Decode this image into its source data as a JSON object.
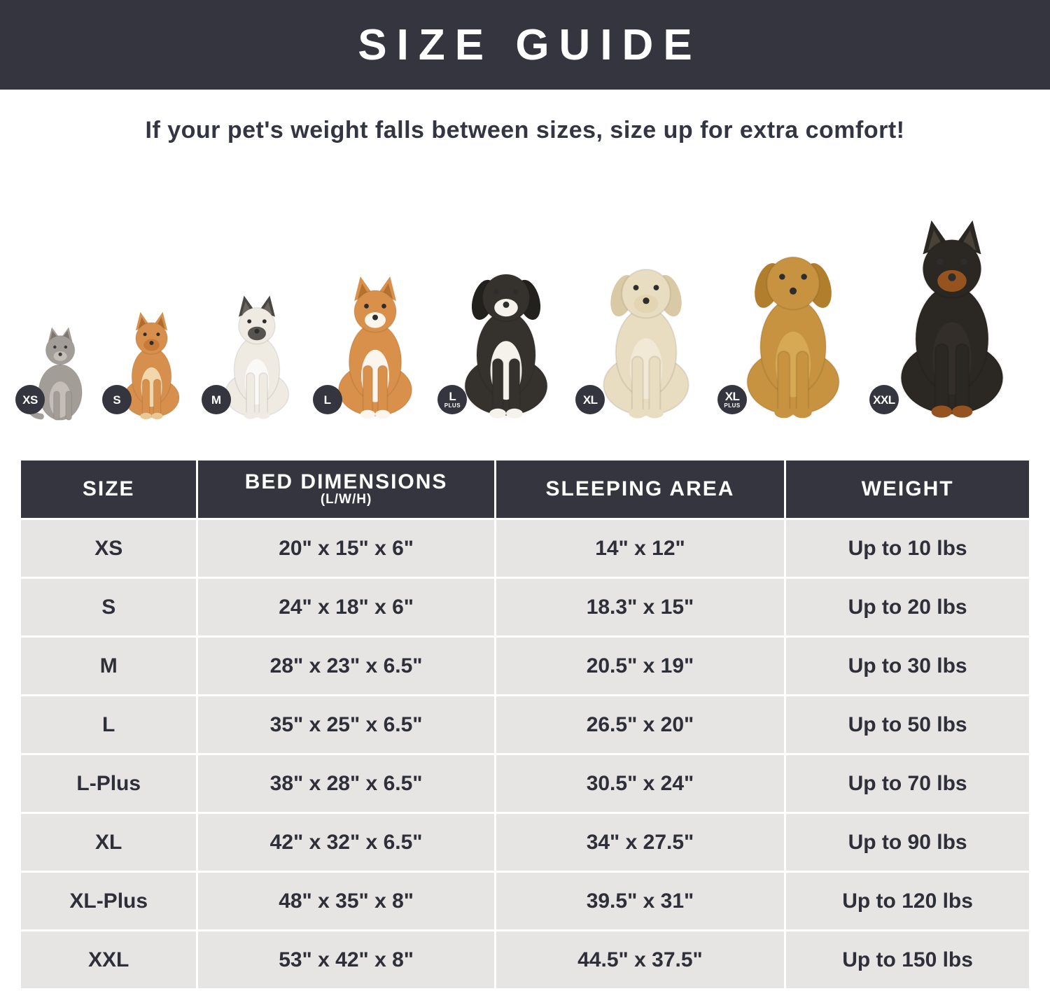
{
  "colors": {
    "navy": "#35353F",
    "row_bg": "#E6E5E3",
    "text_dark": "#2E2F38",
    "white": "#FFFFFF"
  },
  "header": {
    "title": "SIZE GUIDE"
  },
  "subtitle": "If your pet's weight falls between sizes, size up for extra comfort!",
  "pets": [
    {
      "badge": "XS",
      "badge_sub": "",
      "animal": "cat",
      "shape": "cat",
      "colors": {
        "primary": "#A39D97",
        "secondary": "#C4BEB6",
        "accent": "#7E776F",
        "ear": "#A39D97",
        "muzzle": "#C4BEB6",
        "paws": "#A39D97"
      }
    },
    {
      "badge": "S",
      "badge_sub": "",
      "animal": "pomeranian",
      "shape": "pointy",
      "colors": {
        "primary": "#D68F4C",
        "secondary": "#F2D7AC",
        "accent": "#B06C2E",
        "ear": "#D68F4C",
        "muzzle": "#C87A38",
        "paws": "#E8C894"
      }
    },
    {
      "badge": "M",
      "badge_sub": "",
      "animal": "french-bulldog",
      "shape": "pointy",
      "colors": {
        "primary": "#EFEBE3",
        "secondary": "#FBF9F5",
        "accent": "#6B6660",
        "ear": "#4A4743",
        "muzzle": "#57534E",
        "paws": "#EFEBE3"
      }
    },
    {
      "badge": "L",
      "badge_sub": "",
      "animal": "shiba-inu",
      "shape": "pointy",
      "colors": {
        "primary": "#D8904A",
        "secondary": "#FBF5EB",
        "accent": "#B5722F",
        "ear": "#D8904A",
        "muzzle": "#FBF5EB",
        "paws": "#FBF5EB"
      }
    },
    {
      "badge": "L",
      "badge_sub": "PLUS",
      "animal": "border-collie",
      "shape": "floppy",
      "colors": {
        "primary": "#35322E",
        "secondary": "#F5F2EC",
        "accent": "#23211E",
        "ear": "#23211E",
        "muzzle": "#F5F2EC",
        "paws": "#F5F2EC"
      }
    },
    {
      "badge": "XL",
      "badge_sub": "",
      "animal": "labrador",
      "shape": "floppy",
      "colors": {
        "primary": "#E8DDC1",
        "secondary": "#F1E9D6",
        "accent": "#D9C9A4",
        "ear": "#D9C9A4",
        "muzzle": "#E3D5B2",
        "paws": "#E8DDC1"
      }
    },
    {
      "badge": "XL",
      "badge_sub": "PLUS",
      "animal": "golden-retriever",
      "shape": "floppy",
      "colors": {
        "primary": "#C79340",
        "secondary": "#D7A954",
        "accent": "#B07E2D",
        "ear": "#B07E2D",
        "muzzle": "#C79340",
        "paws": "#C79340"
      }
    },
    {
      "badge": "XXL",
      "badge_sub": "",
      "animal": "doberman",
      "shape": "pointy",
      "colors": {
        "primary": "#2B2723",
        "secondary": "#332E29",
        "accent": "#4A4138",
        "ear": "#2B2723",
        "muzzle": "#95541F",
        "paws": "#95541F"
      }
    }
  ],
  "table": {
    "columns": [
      {
        "label": "SIZE",
        "sublabel": ""
      },
      {
        "label": "BED DIMENSIONS",
        "sublabel": "(L/W/H)"
      },
      {
        "label": "SLEEPING AREA",
        "sublabel": ""
      },
      {
        "label": "WEIGHT",
        "sublabel": ""
      }
    ],
    "rows": [
      {
        "size": "XS",
        "bed": "20\" x 15\" x 6\"",
        "sleeping": "14\" x 12\"",
        "weight": "Up to 10 lbs"
      },
      {
        "size": "S",
        "bed": "24\" x 18\" x 6\"",
        "sleeping": "18.3\" x 15\"",
        "weight": "Up to 20 lbs"
      },
      {
        "size": "M",
        "bed": "28\" x 23\" x 6.5\"",
        "sleeping": "20.5\" x 19\"",
        "weight": "Up to 30 lbs"
      },
      {
        "size": "L",
        "bed": "35\" x 25\" x 6.5\"",
        "sleeping": "26.5\" x 20\"",
        "weight": "Up to 50 lbs"
      },
      {
        "size": "L-Plus",
        "bed": "38\" x 28\" x 6.5\"",
        "sleeping": "30.5\" x 24\"",
        "weight": "Up to 70 lbs"
      },
      {
        "size": "XL",
        "bed": "42\" x 32\" x 6.5\"",
        "sleeping": "34\" x 27.5\"",
        "weight": "Up to 90 lbs"
      },
      {
        "size": "XL-Plus",
        "bed": "48\" x 35\" x 8\"",
        "sleeping": "39.5\" x 31\"",
        "weight": "Up to 120 lbs"
      },
      {
        "size": "XXL",
        "bed": "53\" x 42\" x 8\"",
        "sleeping": "44.5\" x 37.5\"",
        "weight": "Up to 150 lbs"
      }
    ]
  }
}
